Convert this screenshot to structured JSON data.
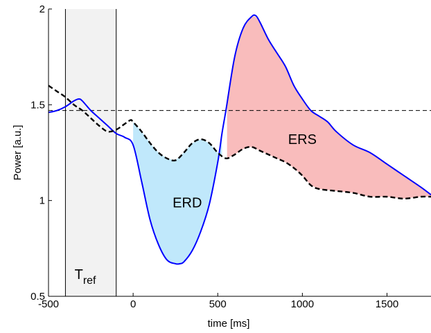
{
  "chart_data": {
    "type": "line",
    "xlabel": "time [ms]",
    "ylabel": "Power [a.u.]",
    "xlim": [
      -500,
      1760
    ],
    "ylim": [
      0.5,
      2
    ],
    "x_ticks": [
      -500,
      0,
      500,
      1000,
      1500
    ],
    "y_ticks": [
      0.5,
      1,
      1.5,
      2
    ],
    "x_tick_labels": [
      "-500",
      "0",
      "500",
      "1000",
      "1500"
    ],
    "y_tick_labels": [
      "0.5",
      "1",
      "1.5",
      "2"
    ],
    "grid": false,
    "reference_window": {
      "x_start": -400,
      "x_end": -100,
      "label_main": "T",
      "label_sub": "ref"
    },
    "baseline_level": 1.47,
    "series": [
      {
        "style": "solid",
        "color": "#0000ff",
        "x": [
          -500,
          -450,
          -400,
          -350,
          -320,
          -300,
          -250,
          -200,
          -150,
          -100,
          -50,
          0,
          50,
          100,
          150,
          200,
          250,
          275,
          300,
          350,
          400,
          450,
          500,
          525,
          550,
          600,
          650,
          700,
          725,
          750,
          800,
          850,
          900,
          950,
          1000,
          1050,
          1100,
          1150,
          1200,
          1300,
          1400,
          1500,
          1600,
          1700,
          1760
        ],
        "y": [
          1.46,
          1.47,
          1.49,
          1.52,
          1.53,
          1.52,
          1.47,
          1.43,
          1.39,
          1.35,
          1.33,
          1.29,
          1.1,
          0.9,
          0.77,
          0.69,
          0.67,
          0.67,
          0.68,
          0.74,
          0.84,
          0.98,
          1.2,
          1.35,
          1.48,
          1.75,
          1.9,
          1.96,
          1.965,
          1.93,
          1.84,
          1.77,
          1.7,
          1.6,
          1.53,
          1.47,
          1.44,
          1.41,
          1.36,
          1.29,
          1.25,
          1.19,
          1.13,
          1.07,
          1.03
        ]
      },
      {
        "style": "dashed",
        "color": "#000000",
        "x": [
          -500,
          -450,
          -400,
          -350,
          -300,
          -250,
          -200,
          -150,
          -100,
          -50,
          -15,
          0,
          50,
          100,
          150,
          200,
          250,
          300,
          350,
          400,
          450,
          500,
          550,
          600,
          650,
          700,
          750,
          800,
          850,
          900,
          950,
          1000,
          1050,
          1100,
          1200,
          1300,
          1400,
          1500,
          1600,
          1700,
          1760
        ],
        "y": [
          1.6,
          1.57,
          1.54,
          1.5,
          1.47,
          1.43,
          1.39,
          1.36,
          1.37,
          1.4,
          1.42,
          1.41,
          1.36,
          1.3,
          1.25,
          1.22,
          1.21,
          1.25,
          1.3,
          1.32,
          1.3,
          1.25,
          1.22,
          1.24,
          1.27,
          1.28,
          1.26,
          1.24,
          1.22,
          1.2,
          1.17,
          1.13,
          1.08,
          1.06,
          1.05,
          1.04,
          1.02,
          1.02,
          1.01,
          1.02,
          1.02
        ]
      }
    ],
    "annotations": [
      {
        "text": "ERD",
        "x": 320,
        "y": 0.99
      },
      {
        "text": "ERS",
        "x": 1000,
        "y": 1.32
      }
    ],
    "fill_regions": [
      {
        "name": "ERD",
        "color": "#c0e8fb",
        "x_start": 0,
        "x_end": 525
      },
      {
        "name": "ERS",
        "color": "#f9bcbc",
        "x_start": 555,
        "x_end": 1760
      }
    ],
    "ref_window_color": "#f2f2f2"
  }
}
